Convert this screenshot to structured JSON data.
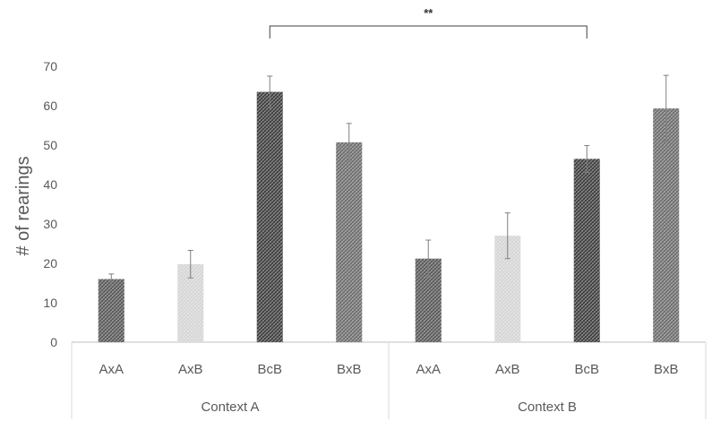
{
  "chart_data": {
    "type": "bar",
    "ylabel": "# of rearings",
    "xlabel": "",
    "ylim": [
      0,
      70
    ],
    "yticks": [
      0,
      10,
      20,
      30,
      40,
      50,
      60,
      70
    ],
    "grid": false,
    "categories": [
      "AxA",
      "AxB",
      "BcB",
      "BxB",
      "AxA",
      "AxB",
      "BcB",
      "BxB"
    ],
    "groups": [
      {
        "label": "Context A",
        "count": 4
      },
      {
        "label": "Context B",
        "count": 4
      }
    ],
    "values": [
      16,
      19.8,
      63.5,
      50.7,
      21.2,
      27,
      46.5,
      59.3
    ],
    "errors": [
      1.3,
      3.5,
      4,
      4.8,
      4.7,
      5.8,
      3.4,
      8.4
    ],
    "bar_colors": [
      "#555555",
      "#d4d4d4",
      "#3a3a3a",
      "#6a6a6a",
      "#555555",
      "#d4d4d4",
      "#3a3a3a",
      "#6a6a6a"
    ],
    "annotation": {
      "text": "**",
      "from_index": 2,
      "to_index": 6
    }
  }
}
